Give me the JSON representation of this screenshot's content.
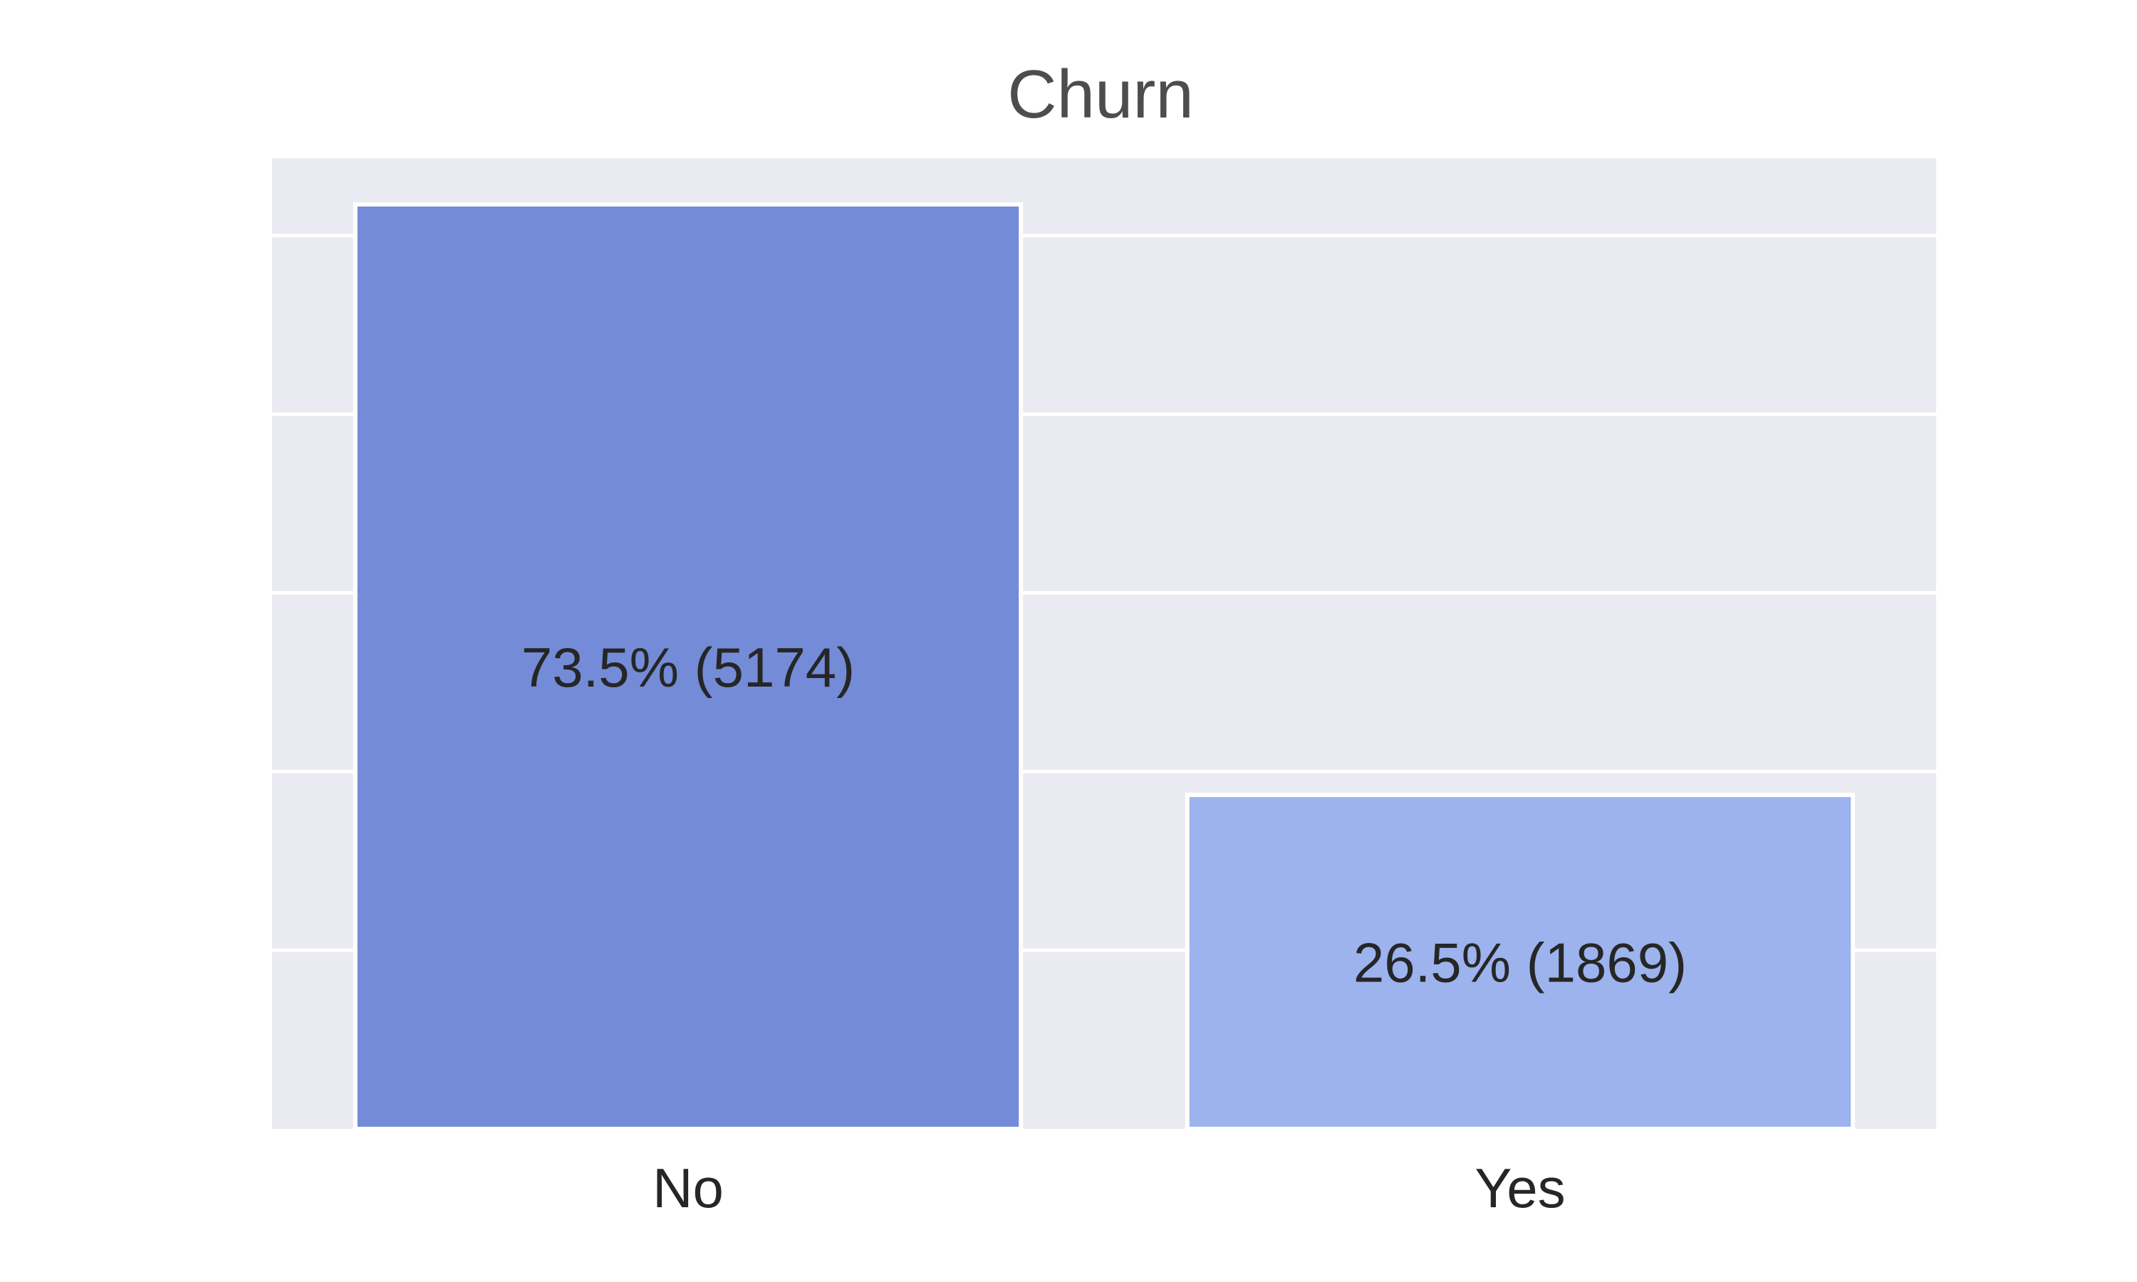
{
  "chart_data": {
    "type": "bar",
    "title": "Churn",
    "xlabel": "",
    "ylabel": "",
    "categories": [
      "No",
      "Yes"
    ],
    "values": [
      5174,
      1869
    ],
    "data_labels": [
      "73.5% (5174)",
      "26.5% (1869)"
    ],
    "ylim": [
      0,
      5433
    ],
    "yticks": [
      0,
      1000,
      2000,
      3000,
      4000,
      5000
    ],
    "show_ytick_labels": false,
    "grid": "horizontal",
    "legend": "none",
    "colors": {
      "bars": [
        "#748bd8",
        "#9cb3ee"
      ],
      "plot_background": "#eaeaf2",
      "grid": "#ffffff",
      "title": "#4d4d4d",
      "labels": "#262626"
    }
  }
}
